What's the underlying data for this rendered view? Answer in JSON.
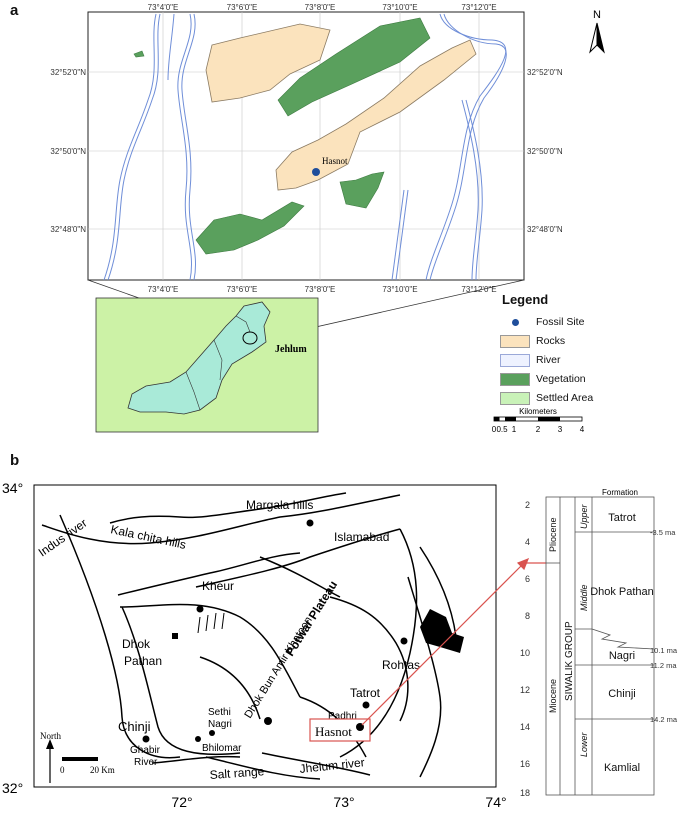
{
  "panel_a": {
    "letter": "a",
    "lon_labels": [
      "73°4'0\"E",
      "73°6'0\"E",
      "73°8'0\"E",
      "73°10'0\"E",
      "73°12'0\"E"
    ],
    "lat_labels": [
      "32°52'0\"N",
      "32°50'0\"N",
      "32°48'0\"N"
    ],
    "site_label": "Hasnot",
    "north_label": "N",
    "inset_label": "Jehlum",
    "legend": {
      "title": "Legend",
      "items": [
        {
          "label": "Fossil Site",
          "color": "#1f4e9b",
          "kind": "dot"
        },
        {
          "label": "Rocks",
          "color": "#fbe3bd",
          "kind": "fill"
        },
        {
          "label": "River",
          "color": "#eef2ff",
          "kind": "river"
        },
        {
          "label": "Vegetation",
          "color": "#5aa05d",
          "kind": "fill"
        },
        {
          "label": "Settled Area",
          "color": "#c9f2b8",
          "kind": "fill"
        }
      ],
      "scale_title": "Kilometers",
      "scale_ticks": [
        "0",
        "0.5",
        "1",
        "2",
        "3",
        "4"
      ]
    },
    "colors": {
      "rocks": "#fbe3bd",
      "vegetation": "#5aa05d",
      "river": "#6f8ed8",
      "inset_bg": "#ccf2a6",
      "country": "#a9ead8"
    }
  },
  "panel_b": {
    "letter": "b",
    "lat_labels": [
      "34°",
      "32°"
    ],
    "lon_labels": [
      "72°",
      "73°",
      "74°"
    ],
    "place_labels": {
      "indus": "Indus river",
      "kalachita": "Kala chita hills",
      "margala": "Margala hills",
      "islamabad": "Islamabad",
      "kheur": "Kheur",
      "potwar": "Potwar Plateau",
      "dhok_bun": "Dhok Bun Amir Khatoon",
      "dhok": "Dhok",
      "pathan": "Pathan",
      "rohtas": "Rohtas",
      "tatrot": "Tatrot",
      "padhri": "Padhri",
      "hasnot": "Hasnot",
      "chinji": "Chinji",
      "sethi": "Sethi",
      "nagri": "Nagri",
      "ghabir": "Ghabir",
      "river_word": "River",
      "bhilomar": "Bhilomar",
      "salt": "Salt range",
      "jhelum": "Jhelum river",
      "north": "North",
      "scale0": "0",
      "scale20": "20 Km"
    },
    "stratigraphy": {
      "header": "Formation",
      "depth_ticks": [
        "2",
        "4",
        "6",
        "8",
        "10",
        "12",
        "14",
        "16",
        "18"
      ],
      "epochs": [
        "Pliocene",
        "Miocene"
      ],
      "group": "SIWALIK GROUP",
      "subdivisions": [
        "Upper",
        "Middle",
        "Lower"
      ],
      "formations": [
        "Tatrot",
        "Dhok Pathan",
        "Nagri",
        "Chinji",
        "Kamlial"
      ],
      "ages": [
        "3.5 ma",
        "10.1 ma",
        "11.2 ma",
        "14.2 ma"
      ]
    }
  }
}
